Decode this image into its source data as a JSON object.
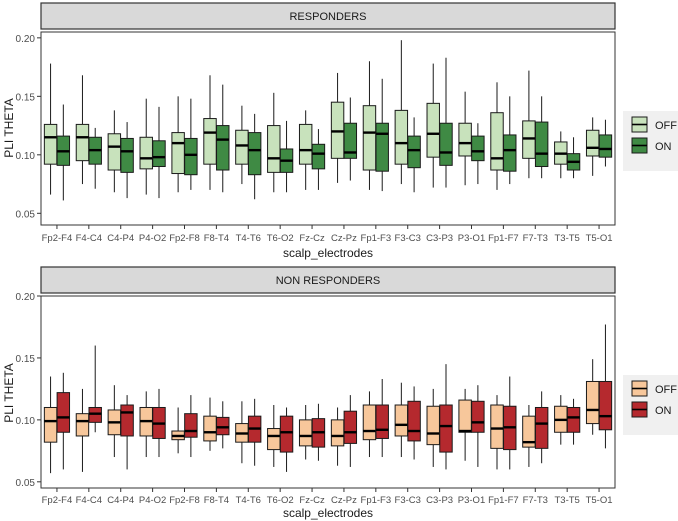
{
  "chart_data": [
    {
      "type": "boxplot",
      "title": "RESPONDERS",
      "xlabel": "scalp_electrodes",
      "ylabel": "PLI THETA",
      "ylim": [
        0.04,
        0.205
      ],
      "yticks": [
        0.05,
        0.1,
        0.15,
        0.2
      ],
      "ytick_labels": [
        "0.05",
        "0.10",
        "0.15",
        "0.20"
      ],
      "categories": [
        "Fp2-F4",
        "F4-C4",
        "C4-P4",
        "P4-O2",
        "Fp2-F8",
        "F8-T4",
        "T4-T6",
        "T6-O2",
        "Fz-Cz",
        "Cz-Pz",
        "Fp1-F3",
        "F3-C3",
        "C3-P3",
        "P3-O1",
        "Fp1-F7",
        "F7-T3",
        "T3-T5",
        "T5-O1"
      ],
      "legend": [
        {
          "label": "OFF",
          "color": "#c8e2bc"
        },
        {
          "label": "ON",
          "color": "#3f8a44"
        }
      ],
      "series": [
        {
          "name": "OFF",
          "color": "#c8e2bc",
          "boxes": [
            {
              "low": 0.066,
              "q1": 0.092,
              "median": 0.115,
              "q3": 0.126,
              "high": 0.178
            },
            {
              "low": 0.075,
              "q1": 0.095,
              "median": 0.115,
              "q3": 0.126,
              "high": 0.168
            },
            {
              "low": 0.068,
              "q1": 0.087,
              "median": 0.107,
              "q3": 0.118,
              "high": 0.138
            },
            {
              "low": 0.066,
              "q1": 0.088,
              "median": 0.097,
              "q3": 0.115,
              "high": 0.148
            },
            {
              "low": 0.068,
              "q1": 0.084,
              "median": 0.11,
              "q3": 0.119,
              "high": 0.15
            },
            {
              "low": 0.07,
              "q1": 0.092,
              "median": 0.119,
              "q3": 0.131,
              "high": 0.168
            },
            {
              "low": 0.075,
              "q1": 0.092,
              "median": 0.108,
              "q3": 0.121,
              "high": 0.142
            },
            {
              "low": 0.068,
              "q1": 0.085,
              "median": 0.097,
              "q3": 0.125,
              "high": 0.153
            },
            {
              "low": 0.07,
              "q1": 0.092,
              "median": 0.104,
              "q3": 0.126,
              "high": 0.138
            },
            {
              "low": 0.076,
              "q1": 0.097,
              "median": 0.12,
              "q3": 0.145,
              "high": 0.17
            },
            {
              "low": 0.07,
              "q1": 0.087,
              "median": 0.119,
              "q3": 0.142,
              "high": 0.18
            },
            {
              "low": 0.075,
              "q1": 0.092,
              "median": 0.11,
              "q3": 0.138,
              "high": 0.198
            },
            {
              "low": 0.072,
              "q1": 0.098,
              "median": 0.118,
              "q3": 0.144,
              "high": 0.178
            },
            {
              "low": 0.074,
              "q1": 0.099,
              "median": 0.11,
              "q3": 0.127,
              "high": 0.154
            },
            {
              "low": 0.07,
              "q1": 0.087,
              "median": 0.097,
              "q3": 0.136,
              "high": 0.162
            },
            {
              "low": 0.08,
              "q1": 0.097,
              "median": 0.114,
              "q3": 0.129,
              "high": 0.172
            },
            {
              "low": 0.08,
              "q1": 0.092,
              "median": 0.101,
              "q3": 0.111,
              "high": 0.12
            },
            {
              "low": 0.082,
              "q1": 0.099,
              "median": 0.106,
              "q3": 0.121,
              "high": 0.132
            }
          ]
        },
        {
          "name": "ON",
          "color": "#3f8a44",
          "boxes": [
            {
              "low": 0.061,
              "q1": 0.091,
              "median": 0.103,
              "q3": 0.116,
              "high": 0.143
            },
            {
              "low": 0.071,
              "q1": 0.092,
              "median": 0.104,
              "q3": 0.115,
              "high": 0.123
            },
            {
              "low": 0.063,
              "q1": 0.085,
              "median": 0.103,
              "q3": 0.114,
              "high": 0.128
            },
            {
              "low": 0.063,
              "q1": 0.09,
              "median": 0.098,
              "q3": 0.112,
              "high": 0.141
            },
            {
              "low": 0.07,
              "q1": 0.083,
              "median": 0.1,
              "q3": 0.114,
              "high": 0.148
            },
            {
              "low": 0.068,
              "q1": 0.087,
              "median": 0.113,
              "q3": 0.125,
              "high": 0.16
            },
            {
              "low": 0.062,
              "q1": 0.083,
              "median": 0.104,
              "q3": 0.119,
              "high": 0.135
            },
            {
              "low": 0.068,
              "q1": 0.085,
              "median": 0.095,
              "q3": 0.105,
              "high": 0.129
            },
            {
              "low": 0.07,
              "q1": 0.088,
              "median": 0.101,
              "q3": 0.109,
              "high": 0.122
            },
            {
              "low": 0.078,
              "q1": 0.097,
              "median": 0.102,
              "q3": 0.127,
              "high": 0.149
            },
            {
              "low": 0.069,
              "q1": 0.086,
              "median": 0.118,
              "q3": 0.127,
              "high": 0.165
            },
            {
              "low": 0.068,
              "q1": 0.089,
              "median": 0.104,
              "q3": 0.116,
              "high": 0.132
            },
            {
              "low": 0.072,
              "q1": 0.091,
              "median": 0.102,
              "q3": 0.127,
              "high": 0.183
            },
            {
              "low": 0.075,
              "q1": 0.095,
              "median": 0.103,
              "q3": 0.116,
              "high": 0.127
            },
            {
              "low": 0.075,
              "q1": 0.086,
              "median": 0.104,
              "q3": 0.117,
              "high": 0.15
            },
            {
              "low": 0.08,
              "q1": 0.09,
              "median": 0.101,
              "q3": 0.128,
              "high": 0.15
            },
            {
              "low": 0.08,
              "q1": 0.087,
              "median": 0.094,
              "q3": 0.101,
              "high": 0.115
            },
            {
              "low": 0.09,
              "q1": 0.098,
              "median": 0.105,
              "q3": 0.117,
              "high": 0.13
            }
          ]
        }
      ]
    },
    {
      "type": "boxplot",
      "title": "NON RESPONDERS",
      "xlabel": "scalp_electrodes",
      "ylabel": "PLI THETA",
      "ylim": [
        0.045,
        0.2
      ],
      "yticks": [
        0.05,
        0.1,
        0.15,
        0.2
      ],
      "ytick_labels": [
        "0.05",
        "0.10",
        "0.15",
        "0.20"
      ],
      "categories": [
        "Fp2-F4",
        "F4-C4",
        "C4-P4",
        "P4-O2",
        "Fp2-F8",
        "F8-T4",
        "T4-T6",
        "T6-O2",
        "Fz-Cz",
        "Cz-Pz",
        "Fp1-F3",
        "F3-C3",
        "C3-P3",
        "P3-O1",
        "Fp1-F7",
        "F7-T3",
        "T3-T5",
        "T5-O1"
      ],
      "legend": [
        {
          "label": "OFF",
          "color": "#f7c79b"
        },
        {
          "label": "ON",
          "color": "#b5292e"
        }
      ],
      "series": [
        {
          "name": "OFF",
          "color": "#f7c79b",
          "boxes": [
            {
              "low": 0.057,
              "q1": 0.082,
              "median": 0.099,
              "q3": 0.11,
              "high": 0.135
            },
            {
              "low": 0.058,
              "q1": 0.087,
              "median": 0.099,
              "q3": 0.105,
              "high": 0.125
            },
            {
              "low": 0.07,
              "q1": 0.088,
              "median": 0.098,
              "q3": 0.108,
              "high": 0.128
            },
            {
              "low": 0.07,
              "q1": 0.087,
              "median": 0.099,
              "q3": 0.11,
              "high": 0.123
            },
            {
              "low": 0.073,
              "q1": 0.084,
              "median": 0.087,
              "q3": 0.091,
              "high": 0.11
            },
            {
              "low": 0.075,
              "q1": 0.083,
              "median": 0.09,
              "q3": 0.103,
              "high": 0.118
            },
            {
              "low": 0.065,
              "q1": 0.082,
              "median": 0.089,
              "q3": 0.097,
              "high": 0.115
            },
            {
              "low": 0.062,
              "q1": 0.076,
              "median": 0.087,
              "q3": 0.093,
              "high": 0.112
            },
            {
              "low": 0.068,
              "q1": 0.079,
              "median": 0.087,
              "q3": 0.1,
              "high": 0.112
            },
            {
              "low": 0.063,
              "q1": 0.079,
              "median": 0.087,
              "q3": 0.1,
              "high": 0.11
            },
            {
              "low": 0.07,
              "q1": 0.084,
              "median": 0.091,
              "q3": 0.112,
              "high": 0.123
            },
            {
              "low": 0.07,
              "q1": 0.087,
              "median": 0.096,
              "q3": 0.112,
              "high": 0.13
            },
            {
              "low": 0.062,
              "q1": 0.08,
              "median": 0.089,
              "q3": 0.111,
              "high": 0.125
            },
            {
              "low": 0.067,
              "q1": 0.09,
              "median": 0.091,
              "q3": 0.116,
              "high": 0.125
            },
            {
              "low": 0.06,
              "q1": 0.077,
              "median": 0.093,
              "q3": 0.112,
              "high": 0.12
            },
            {
              "low": 0.062,
              "q1": 0.078,
              "median": 0.082,
              "q3": 0.103,
              "high": 0.112
            },
            {
              "low": 0.08,
              "q1": 0.09,
              "median": 0.1,
              "q3": 0.111,
              "high": 0.12
            },
            {
              "low": 0.088,
              "q1": 0.097,
              "median": 0.108,
              "q3": 0.131,
              "high": 0.149
            }
          ]
        },
        {
          "name": "ON",
          "color": "#b5292e",
          "boxes": [
            {
              "low": 0.06,
              "q1": 0.09,
              "median": 0.102,
              "q3": 0.122,
              "high": 0.138
            },
            {
              "low": 0.09,
              "q1": 0.098,
              "median": 0.105,
              "q3": 0.11,
              "high": 0.16
            },
            {
              "low": 0.06,
              "q1": 0.087,
              "median": 0.106,
              "q3": 0.112,
              "high": 0.12
            },
            {
              "low": 0.07,
              "q1": 0.085,
              "median": 0.097,
              "q3": 0.11,
              "high": 0.125
            },
            {
              "low": 0.07,
              "q1": 0.086,
              "median": 0.091,
              "q3": 0.105,
              "high": 0.12
            },
            {
              "low": 0.077,
              "q1": 0.088,
              "median": 0.094,
              "q3": 0.102,
              "high": 0.115
            },
            {
              "low": 0.063,
              "q1": 0.082,
              "median": 0.093,
              "q3": 0.103,
              "high": 0.117
            },
            {
              "low": 0.058,
              "q1": 0.074,
              "median": 0.09,
              "q3": 0.103,
              "high": 0.11
            },
            {
              "low": 0.067,
              "q1": 0.078,
              "median": 0.09,
              "q3": 0.101,
              "high": 0.113
            },
            {
              "low": 0.062,
              "q1": 0.081,
              "median": 0.09,
              "q3": 0.107,
              "high": 0.12
            },
            {
              "low": 0.07,
              "q1": 0.085,
              "median": 0.092,
              "q3": 0.112,
              "high": 0.133
            },
            {
              "low": 0.068,
              "q1": 0.083,
              "median": 0.091,
              "q3": 0.115,
              "high": 0.127
            },
            {
              "low": 0.06,
              "q1": 0.074,
              "median": 0.095,
              "q3": 0.112,
              "high": 0.145
            },
            {
              "low": 0.062,
              "q1": 0.09,
              "median": 0.098,
              "q3": 0.115,
              "high": 0.128
            },
            {
              "low": 0.06,
              "q1": 0.076,
              "median": 0.094,
              "q3": 0.111,
              "high": 0.135
            },
            {
              "low": 0.065,
              "q1": 0.077,
              "median": 0.097,
              "q3": 0.11,
              "high": 0.123
            },
            {
              "low": 0.08,
              "q1": 0.09,
              "median": 0.102,
              "q3": 0.11,
              "high": 0.117
            },
            {
              "low": 0.077,
              "q1": 0.092,
              "median": 0.103,
              "q3": 0.131,
              "high": 0.177
            }
          ]
        }
      ]
    }
  ]
}
